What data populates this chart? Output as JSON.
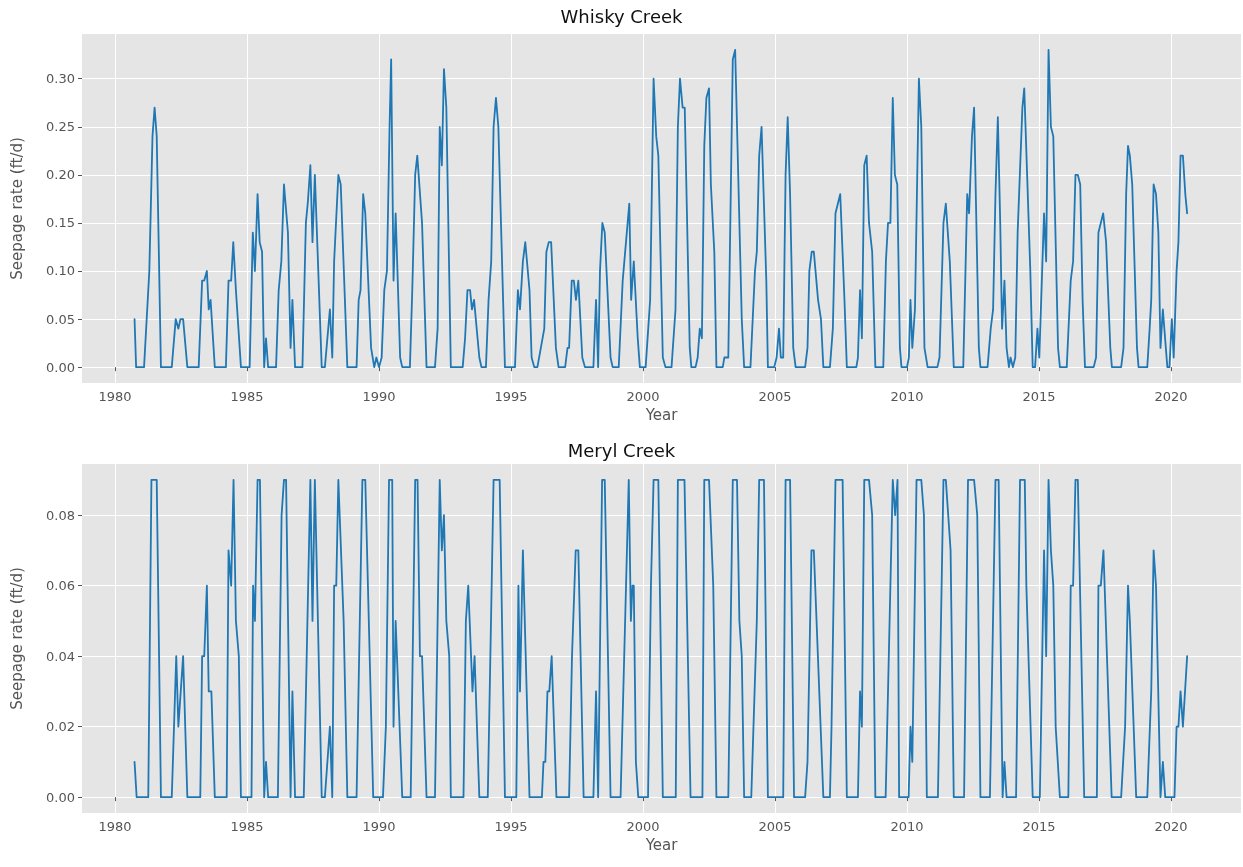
{
  "chart_data": [
    {
      "type": "line",
      "title": "Whisky Creek",
      "xlabel": "Year",
      "ylabel": "Seepage rate (ft/d)",
      "color": "#1f77b4",
      "grid": true,
      "xlim": [
        1978.75,
        2022.65
      ],
      "xticks": [
        1980,
        1985,
        1990,
        1995,
        2000,
        2005,
        2010,
        2015,
        2020
      ],
      "ylim": [
        -0.0165,
        0.3465
      ],
      "yticks": [
        {
          "value": 0,
          "label": "0.00"
        },
        {
          "value": 0.05,
          "label": "0.05"
        },
        {
          "value": 0.1,
          "label": "0.10"
        },
        {
          "value": 0.15,
          "label": "0.15"
        },
        {
          "value": 0.2,
          "label": "0.20"
        },
        {
          "value": 0.25,
          "label": "0.25"
        },
        {
          "value": 0.3,
          "label": "0.30"
        }
      ],
      "x": [
        1980.74,
        1980.8,
        1981.1,
        1981.3,
        1981.42,
        1981.5,
        1981.58,
        1981.74,
        1982.15,
        1982.3,
        1982.4,
        1982.48,
        1982.58,
        1982.74,
        1983.17,
        1983.3,
        1983.38,
        1983.48,
        1983.55,
        1983.62,
        1983.78,
        1984.2,
        1984.3,
        1984.4,
        1984.48,
        1984.58,
        1984.77,
        1985.1,
        1985.22,
        1985.3,
        1985.4,
        1985.48,
        1985.57,
        1985.65,
        1985.72,
        1985.8,
        1986.1,
        1986.2,
        1986.3,
        1986.4,
        1986.55,
        1986.65,
        1986.72,
        1986.82,
        1987.1,
        1987.23,
        1987.3,
        1987.4,
        1987.48,
        1987.57,
        1987.83,
        1987.95,
        1988.14,
        1988.23,
        1988.3,
        1988.46,
        1988.55,
        1988.8,
        1989.15,
        1989.23,
        1989.3,
        1989.4,
        1989.48,
        1989.7,
        1989.82,
        1989.9,
        1990.0,
        1990.1,
        1990.2,
        1990.3,
        1990.4,
        1990.46,
        1990.55,
        1990.63,
        1990.8,
        1990.88,
        1991.17,
        1991.26,
        1991.37,
        1991.45,
        1991.63,
        1991.8,
        1992.12,
        1992.22,
        1992.3,
        1992.38,
        1992.46,
        1992.55,
        1992.72,
        1993.17,
        1993.26,
        1993.35,
        1993.45,
        1993.52,
        1993.6,
        1993.8,
        1993.88,
        1994.05,
        1994.15,
        1994.25,
        1994.34,
        1994.43,
        1994.52,
        1994.77,
        1995.15,
        1995.26,
        1995.34,
        1995.45,
        1995.54,
        1995.7,
        1995.78,
        1995.88,
        1996.0,
        1996.26,
        1996.34,
        1996.43,
        1996.52,
        1996.7,
        1996.8,
        1997.05,
        1997.14,
        1997.2,
        1997.3,
        1997.38,
        1997.46,
        1997.55,
        1997.7,
        1997.8,
        1998.12,
        1998.22,
        1998.3,
        1998.37,
        1998.46,
        1998.55,
        1998.77,
        1998.85,
        1999.08,
        1999.23,
        1999.48,
        1999.55,
        1999.65,
        1999.8,
        1999.88,
        2000.1,
        2000.27,
        2000.4,
        2000.5,
        2000.58,
        2000.75,
        2000.85,
        2001.08,
        2001.23,
        2001.32,
        2001.4,
        2001.5,
        2001.58,
        2001.77,
        2001.83,
        2001.99,
        2002.07,
        2002.15,
        2002.23,
        2002.32,
        2002.4,
        2002.5,
        2002.57,
        2002.7,
        2002.78,
        2003.02,
        2003.08,
        2003.23,
        2003.4,
        2003.49,
        2003.74,
        2003.83,
        2004.07,
        2004.24,
        2004.31,
        2004.4,
        2004.49,
        2004.67,
        2004.73,
        2004.97,
        2005.06,
        2005.15,
        2005.22,
        2005.31,
        2005.4,
        2005.48,
        2005.57,
        2005.69,
        2005.78,
        2006.14,
        2006.23,
        2006.3,
        2006.39,
        2006.47,
        2006.63,
        2006.74,
        2006.83,
        2007.08,
        2007.19,
        2007.29,
        2007.38,
        2007.47,
        2007.63,
        2007.72,
        2008.08,
        2008.14,
        2008.22,
        2008.29,
        2008.38,
        2008.47,
        2008.56,
        2008.68,
        2008.8,
        2009.1,
        2009.2,
        2009.28,
        2009.37,
        2009.46,
        2009.54,
        2009.63,
        2009.73,
        2009.79,
        2010.0,
        2010.07,
        2010.13,
        2010.2,
        2010.3,
        2010.45,
        2010.54,
        2010.66,
        2010.78,
        2011.15,
        2011.23,
        2011.38,
        2011.47,
        2011.62,
        2011.77,
        2012.13,
        2012.28,
        2012.35,
        2012.46,
        2012.54,
        2012.72,
        2012.78,
        2013.05,
        2013.17,
        2013.26,
        2013.35,
        2013.44,
        2013.53,
        2013.6,
        2013.69,
        2013.77,
        2013.86,
        2013.92,
        2014.01,
        2014.1,
        2014.19,
        2014.37,
        2014.44,
        2014.67,
        2014.76,
        2014.85,
        2014.94,
        2015.01,
        2015.19,
        2015.27,
        2015.36,
        2015.45,
        2015.54,
        2015.72,
        2015.79,
        2016.05,
        2016.2,
        2016.29,
        2016.38,
        2016.47,
        2016.56,
        2016.65,
        2016.74,
        2017.07,
        2017.16,
        2017.25,
        2017.34,
        2017.43,
        2017.54,
        2017.7,
        2017.76,
        2018.11,
        2018.2,
        2018.3,
        2018.37,
        2018.44,
        2018.53,
        2018.71,
        2018.77,
        2019.1,
        2019.19,
        2019.25,
        2019.34,
        2019.43,
        2019.52,
        2019.6,
        2019.69,
        2019.86,
        2019.94,
        2020.03,
        2020.1,
        2020.21,
        2020.28,
        2020.36,
        2020.45,
        2020.54,
        2020.61
      ],
      "values": [
        0.05,
        0,
        0,
        0.1,
        0.24,
        0.27,
        0.24,
        0,
        0,
        0.05,
        0.04,
        0.05,
        0.05,
        0,
        0,
        0.09,
        0.09,
        0.1,
        0.06,
        0.07,
        0,
        0,
        0.09,
        0.09,
        0.13,
        0.08,
        0,
        0,
        0.14,
        0.1,
        0.18,
        0.13,
        0.12,
        0,
        0.03,
        0,
        0,
        0.08,
        0.11,
        0.19,
        0.14,
        0.02,
        0.07,
        0,
        0,
        0.15,
        0.17,
        0.21,
        0.13,
        0.2,
        0,
        0,
        0.06,
        0.01,
        0.11,
        0.2,
        0.19,
        0,
        0,
        0.07,
        0.08,
        0.18,
        0.16,
        0.02,
        0,
        0.01,
        0,
        0.01,
        0.08,
        0.1,
        0.25,
        0.32,
        0.09,
        0.16,
        0.01,
        0,
        0,
        0.08,
        0.2,
        0.22,
        0.15,
        0,
        0,
        0.04,
        0.25,
        0.21,
        0.31,
        0.27,
        0,
        0,
        0.03,
        0.08,
        0.08,
        0.06,
        0.07,
        0.01,
        0,
        0,
        0.07,
        0.11,
        0.25,
        0.28,
        0.25,
        0,
        0,
        0.08,
        0.06,
        0.11,
        0.13,
        0.08,
        0.01,
        0,
        0,
        0.04,
        0.12,
        0.13,
        0.13,
        0.02,
        0,
        0,
        0.02,
        0.02,
        0.09,
        0.09,
        0.07,
        0.09,
        0.01,
        0,
        0,
        0.07,
        0,
        0.1,
        0.15,
        0.14,
        0.01,
        0,
        0,
        0.09,
        0.17,
        0.07,
        0.11,
        0.03,
        0,
        0,
        0.07,
        0.3,
        0.24,
        0.22,
        0.01,
        0,
        0,
        0.06,
        0.25,
        0.3,
        0.27,
        0.27,
        0.02,
        0,
        0,
        0.01,
        0.04,
        0.03,
        0.23,
        0.28,
        0.29,
        0.19,
        0.12,
        0,
        0,
        0.01,
        0.01,
        0.32,
        0.33,
        0.05,
        0,
        0,
        0.1,
        0.12,
        0.22,
        0.25,
        0.09,
        0,
        0,
        0.01,
        0.04,
        0.01,
        0.01,
        0.2,
        0.26,
        0.18,
        0.02,
        0,
        0,
        0.02,
        0.1,
        0.12,
        0.12,
        0.07,
        0.05,
        0,
        0,
        0.04,
        0.16,
        0.17,
        0.18,
        0.07,
        0,
        0,
        0.01,
        0.08,
        0.03,
        0.21,
        0.22,
        0.15,
        0.12,
        0,
        0,
        0.11,
        0.15,
        0.15,
        0.28,
        0.2,
        0.19,
        0.02,
        0,
        0,
        0.01,
        0.07,
        0.02,
        0.06,
        0.3,
        0.25,
        0.02,
        0,
        0,
        0.01,
        0.15,
        0.17,
        0.11,
        0,
        0,
        0.18,
        0.16,
        0.24,
        0.27,
        0.02,
        0,
        0,
        0.04,
        0.06,
        0.18,
        0.26,
        0.15,
        0.04,
        0.09,
        0.02,
        0,
        0.01,
        0,
        0.01,
        0.14,
        0.27,
        0.29,
        0.1,
        0,
        0,
        0.04,
        0.01,
        0.16,
        0.11,
        0.33,
        0.25,
        0.24,
        0.02,
        0,
        0,
        0.09,
        0.11,
        0.2,
        0.2,
        0.19,
        0.07,
        0,
        0,
        0.01,
        0.14,
        0.15,
        0.16,
        0.13,
        0.02,
        0,
        0,
        0.02,
        0.18,
        0.23,
        0.22,
        0.19,
        0.02,
        0,
        0,
        0.04,
        0.07,
        0.19,
        0.18,
        0.14,
        0.02,
        0.06,
        0,
        0,
        0.05,
        0.01,
        0.1,
        0.13,
        0.22,
        0.22,
        0.18,
        0.16
      ]
    },
    {
      "type": "line",
      "title": "Meryl Creek",
      "xlabel": "Year",
      "ylabel": "Seepage rate (ft/d)",
      "color": "#1f77b4",
      "grid": true,
      "xlim": [
        1978.75,
        2022.65
      ],
      "xticks": [
        1980,
        1985,
        1990,
        1995,
        2000,
        2005,
        2010,
        2015,
        2020
      ],
      "ylim": [
        -0.0045,
        0.0945
      ],
      "yticks": [
        {
          "value": 0,
          "label": "0.00"
        },
        {
          "value": 0.02,
          "label": "0.02"
        },
        {
          "value": 0.04,
          "label": "0.04"
        },
        {
          "value": 0.06,
          "label": "0.06"
        },
        {
          "value": 0.08,
          "label": "0.08"
        }
      ],
      "x": [
        1980.74,
        1980.82,
        1981.26,
        1981.38,
        1981.58,
        1981.74,
        1982.15,
        1982.32,
        1982.4,
        1982.58,
        1982.74,
        1983.23,
        1983.3,
        1983.38,
        1983.48,
        1983.55,
        1983.65,
        1983.78,
        1984.23,
        1984.3,
        1984.4,
        1984.49,
        1984.58,
        1984.69,
        1984.77,
        1985.17,
        1985.23,
        1985.3,
        1985.4,
        1985.49,
        1985.65,
        1985.72,
        1985.8,
        1986.17,
        1986.31,
        1986.4,
        1986.48,
        1986.65,
        1986.72,
        1986.82,
        1987.15,
        1987.4,
        1987.48,
        1987.57,
        1987.83,
        1987.95,
        1988.14,
        1988.23,
        1988.3,
        1988.38,
        1988.46,
        1988.66,
        1988.8,
        1989.15,
        1989.37,
        1989.48,
        1989.78,
        1990.15,
        1990.26,
        1990.38,
        1990.5,
        1990.55,
        1990.63,
        1990.88,
        1991.2,
        1991.37,
        1991.46,
        1991.55,
        1991.63,
        1991.8,
        1992.12,
        1992.3,
        1992.38,
        1992.46,
        1992.55,
        1992.66,
        1992.72,
        1993.2,
        1993.29,
        1993.38,
        1993.54,
        1993.62,
        1993.8,
        1994.12,
        1994.34,
        1994.57,
        1994.77,
        1995.2,
        1995.28,
        1995.34,
        1995.45,
        1995.7,
        1996.17,
        1996.23,
        1996.3,
        1996.38,
        1996.45,
        1996.54,
        1996.72,
        1997.2,
        1997.31,
        1997.45,
        1997.55,
        1997.75,
        1998.12,
        1998.22,
        1998.3,
        1998.45,
        1998.55,
        1998.77,
        1999.15,
        1999.46,
        1999.54,
        1999.6,
        1999.65,
        1999.73,
        1999.82,
        2000.19,
        2000.3,
        2000.4,
        2000.58,
        2000.75,
        2001.24,
        2001.32,
        2001.57,
        2001.8,
        2002.25,
        2002.32,
        2002.5,
        2002.66,
        2002.78,
        2003.23,
        2003.4,
        2003.56,
        2003.65,
        2003.74,
        2003.83,
        2004.1,
        2004.31,
        2004.4,
        2004.58,
        2004.73,
        2005.31,
        2005.4,
        2005.57,
        2005.72,
        2006.14,
        2006.23,
        2006.38,
        2006.47,
        2006.83,
        2007.08,
        2007.14,
        2007.29,
        2007.56,
        2007.72,
        2008.14,
        2008.22,
        2008.29,
        2008.38,
        2008.56,
        2008.68,
        2008.8,
        2009.19,
        2009.46,
        2009.55,
        2009.64,
        2009.7,
        2010.06,
        2010.13,
        2010.2,
        2010.36,
        2010.54,
        2010.64,
        2010.75,
        2011.17,
        2011.38,
        2011.47,
        2011.65,
        2011.77,
        2012.16,
        2012.31,
        2012.54,
        2012.66,
        2012.78,
        2013.14,
        2013.35,
        2013.47,
        2013.62,
        2013.69,
        2013.77,
        2014.13,
        2014.28,
        2014.46,
        2014.52,
        2014.76,
        2015.03,
        2015.19,
        2015.27,
        2015.36,
        2015.45,
        2015.54,
        2015.63,
        2015.79,
        2016.11,
        2016.2,
        2016.29,
        2016.38,
        2016.47,
        2016.71,
        2017.19,
        2017.25,
        2017.34,
        2017.44,
        2017.75,
        2018.11,
        2018.26,
        2018.37,
        2018.44,
        2018.68,
        2019.1,
        2019.25,
        2019.34,
        2019.43,
        2019.6,
        2019.69,
        2019.78,
        2020.13,
        2020.21,
        2020.28,
        2020.36,
        2020.45,
        2020.61
      ],
      "values": [
        0.01,
        0,
        0,
        0.09,
        0.09,
        0,
        0,
        0.04,
        0.02,
        0.04,
        0,
        0,
        0.04,
        0.04,
        0.06,
        0.03,
        0.03,
        0,
        0,
        0.07,
        0.06,
        0.09,
        0.05,
        0.04,
        0,
        0,
        0.06,
        0.05,
        0.09,
        0.09,
        0,
        0.01,
        0,
        0,
        0.08,
        0.09,
        0.09,
        0,
        0.03,
        0,
        0,
        0.09,
        0.05,
        0.09,
        0,
        0,
        0.02,
        0,
        0.06,
        0.06,
        0.09,
        0.05,
        0,
        0,
        0.09,
        0.09,
        0,
        0,
        0.02,
        0.09,
        0.09,
        0.02,
        0.05,
        0,
        0,
        0.09,
        0.09,
        0.04,
        0.04,
        0,
        0,
        0.09,
        0.07,
        0.08,
        0.05,
        0.04,
        0,
        0,
        0.05,
        0.06,
        0.03,
        0.04,
        0,
        0,
        0.09,
        0.09,
        0,
        0,
        0.06,
        0.03,
        0.07,
        0,
        0,
        0.01,
        0.01,
        0.03,
        0.03,
        0.04,
        0,
        0,
        0.04,
        0.07,
        0.07,
        0,
        0,
        0.03,
        0,
        0.09,
        0.09,
        0,
        0,
        0.09,
        0.05,
        0.06,
        0.06,
        0.01,
        0,
        0,
        0.06,
        0.09,
        0.09,
        0,
        0,
        0.09,
        0.09,
        0,
        0,
        0.09,
        0.09,
        0.06,
        0,
        0,
        0.09,
        0.09,
        0.05,
        0.04,
        0,
        0,
        0.05,
        0.09,
        0.09,
        0,
        0,
        0.09,
        0.09,
        0,
        0,
        0.01,
        0.07,
        0.07,
        0,
        0,
        0.02,
        0.09,
        0.09,
        0,
        0,
        0.03,
        0.02,
        0.09,
        0.09,
        0.08,
        0,
        0,
        0.09,
        0.08,
        0.09,
        0,
        0,
        0.02,
        0.01,
        0.09,
        0.09,
        0.08,
        0,
        0,
        0.09,
        0.09,
        0.07,
        0,
        0,
        0.09,
        0.09,
        0.08,
        0,
        0,
        0.09,
        0.09,
        0,
        0.01,
        0,
        0,
        0.09,
        0.09,
        0.06,
        0,
        0,
        0.07,
        0.04,
        0.09,
        0.07,
        0.06,
        0.02,
        0,
        0,
        0.06,
        0.06,
        0.09,
        0.09,
        0,
        0,
        0.06,
        0.06,
        0.07,
        0,
        0,
        0.02,
        0.06,
        0.05,
        0,
        0,
        0.03,
        0.07,
        0.06,
        0,
        0.01,
        0,
        0,
        0.02,
        0.02,
        0.03,
        0.02,
        0.04
      ]
    }
  ]
}
